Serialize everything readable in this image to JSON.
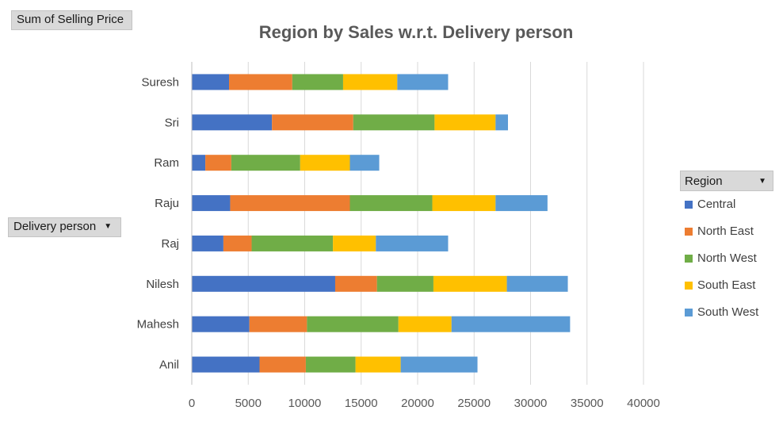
{
  "pivot": {
    "value_field": "Sum of Selling Price",
    "row_field": "Delivery person",
    "legend_field": "Region"
  },
  "chart_data": {
    "type": "bar",
    "orientation": "horizontal",
    "stacked": true,
    "title": "Region by Sales w.r.t. Delivery person",
    "xlabel": "",
    "ylabel": "",
    "categories": [
      "Suresh",
      "Sri",
      "Ram",
      "Raju",
      "Raj",
      "Nilesh",
      "Mahesh",
      "Anil"
    ],
    "xlim": [
      0,
      40000
    ],
    "xticks": [
      0,
      5000,
      10000,
      15000,
      20000,
      25000,
      30000,
      35000,
      40000
    ],
    "grid": true,
    "legend_position": "right",
    "series": [
      {
        "name": "Central",
        "color": "#4472c4",
        "values": [
          3300,
          7100,
          1200,
          3400,
          2800,
          12700,
          5100,
          6000
        ]
      },
      {
        "name": "North East",
        "color": "#ed7d31",
        "values": [
          5600,
          7200,
          2300,
          10600,
          2500,
          3700,
          5100,
          4100
        ]
      },
      {
        "name": "North West",
        "color": "#70ad47",
        "values": [
          4500,
          7200,
          6100,
          7300,
          7200,
          5000,
          8100,
          4400
        ]
      },
      {
        "name": "South East",
        "color": "#ffc000",
        "values": [
          4800,
          5400,
          4400,
          5600,
          3800,
          6500,
          4700,
          4000
        ]
      },
      {
        "name": "South West",
        "color": "#5b9bd5",
        "values": [
          4500,
          1100,
          2600,
          4600,
          6400,
          5400,
          10500,
          6800
        ]
      }
    ]
  }
}
